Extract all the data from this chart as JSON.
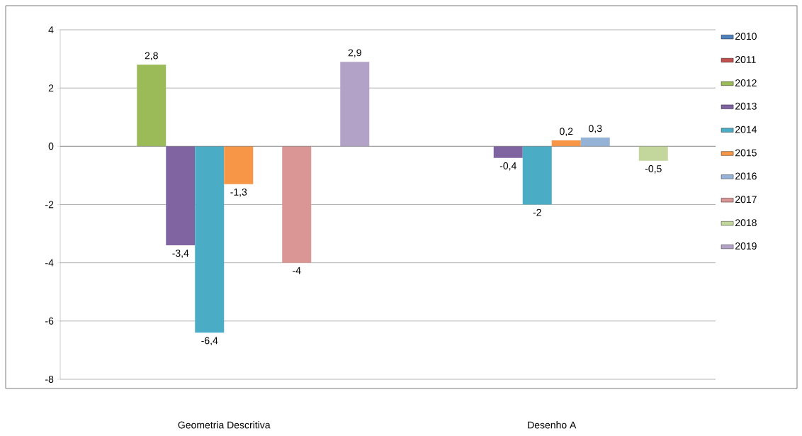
{
  "chart_data": {
    "type": "bar",
    "categories": [
      "Geometria Descritiva",
      "Desenho A"
    ],
    "series": [
      {
        "name": "2010",
        "color": "#4f81bd",
        "values": [
          null,
          null
        ],
        "value_labels": [
          null,
          null
        ]
      },
      {
        "name": "2011",
        "color": "#c0504d",
        "values": [
          null,
          null
        ],
        "value_labels": [
          null,
          null
        ]
      },
      {
        "name": "2012",
        "color": "#9bbb59",
        "values": [
          2.8,
          null
        ],
        "value_labels": [
          "2,8",
          null
        ]
      },
      {
        "name": "2013",
        "color": "#8064a2",
        "values": [
          -3.4,
          -0.4
        ],
        "value_labels": [
          "-3,4",
          "-0,4"
        ]
      },
      {
        "name": "2014",
        "color": "#4bacc6",
        "values": [
          -6.4,
          -2
        ],
        "value_labels": [
          "-6,4",
          "-2"
        ]
      },
      {
        "name": "2015",
        "color": "#f79646",
        "values": [
          -1.3,
          0.2
        ],
        "value_labels": [
          "-1,3",
          "0,2"
        ]
      },
      {
        "name": "2016",
        "color": "#95b3d7",
        "values": [
          null,
          0.3
        ],
        "value_labels": [
          null,
          "0,3"
        ]
      },
      {
        "name": "2017",
        "color": "#d99694",
        "values": [
          -4,
          null
        ],
        "value_labels": [
          "-4",
          null
        ]
      },
      {
        "name": "2018",
        "color": "#c3d69b",
        "values": [
          null,
          -0.5
        ],
        "value_labels": [
          null,
          "-0,5"
        ]
      },
      {
        "name": "2019",
        "color": "#b3a2c7",
        "values": [
          2.9,
          null
        ],
        "value_labels": [
          "2,9",
          null
        ]
      }
    ],
    "ylim": [
      -8,
      4
    ],
    "yticks": [
      -8,
      -6,
      -4,
      -2,
      0,
      2,
      4
    ],
    "grid": "y",
    "legend": "right"
  }
}
